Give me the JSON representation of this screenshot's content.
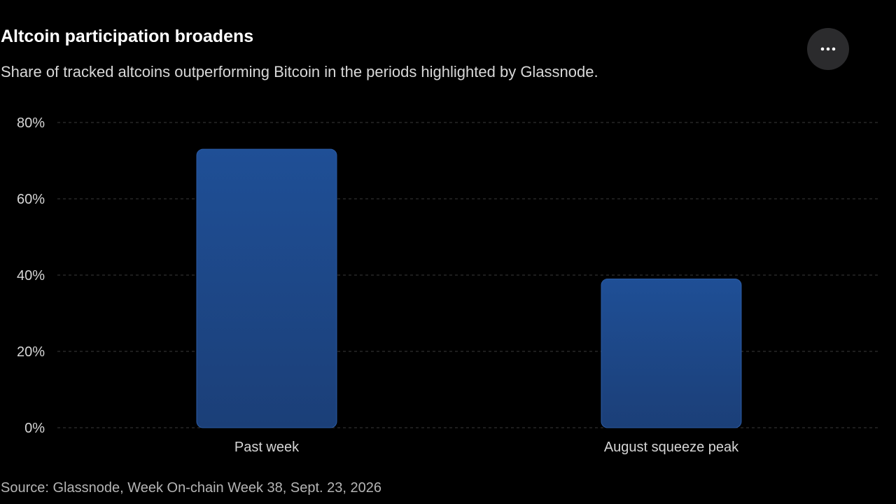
{
  "header": {
    "title": "Altcoin participation broadens",
    "subtitle": "Share of tracked altcoins outperforming Bitcoin in the periods highlighted by Glassnode."
  },
  "menu": {
    "icon": "more-horizontal-icon"
  },
  "footer": {
    "source": "Source: Glassnode, Week On-chain Week 38, Sept. 23, 2026"
  },
  "colors": {
    "background": "#000000",
    "bar_top": "#1f4f96",
    "bar_bottom": "#1b3f78",
    "grid": "#3a3a3a",
    "tick_text": "#d6d6d6"
  },
  "chart_data": {
    "type": "bar",
    "categories": [
      "Past week",
      "August squeeze peak"
    ],
    "values": [
      73,
      39
    ],
    "title": "Altcoin participation broadens",
    "subtitle": "Share of tracked altcoins outperforming Bitcoin in the periods highlighted by Glassnode.",
    "xlabel": "",
    "ylabel": "",
    "ylim": [
      0,
      80
    ],
    "yticks": [
      "0%",
      "20%",
      "40%",
      "60%",
      "80%"
    ],
    "ytick_values": [
      0,
      20,
      40,
      60,
      80
    ],
    "grid": true,
    "legend": "none"
  }
}
